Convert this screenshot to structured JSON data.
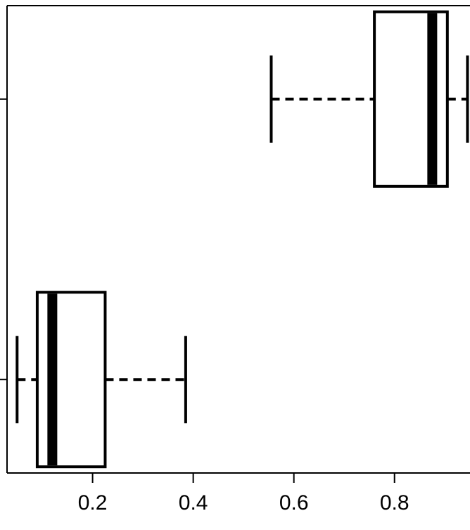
{
  "chart_data": {
    "type": "boxplot",
    "orientation": "horizontal",
    "title": "",
    "xlabel": "",
    "ylabel": "",
    "xlim": [
      0.03,
      0.95
    ],
    "x_ticks": [
      0.2,
      0.4,
      0.6,
      0.8
    ],
    "x_tick_labels": [
      "0.2",
      "0.4",
      "0.6",
      "0.8"
    ],
    "y_ticks_count": 2,
    "groups": [
      {
        "position": 1,
        "min": 0.05,
        "q1": 0.09,
        "median": 0.12,
        "q3": 0.225,
        "max": 0.385
      },
      {
        "position": 2,
        "min": 0.555,
        "q1": 0.76,
        "median": 0.875,
        "q3": 0.905,
        "max": 0.945
      }
    ],
    "grid": false,
    "legend": "none"
  }
}
